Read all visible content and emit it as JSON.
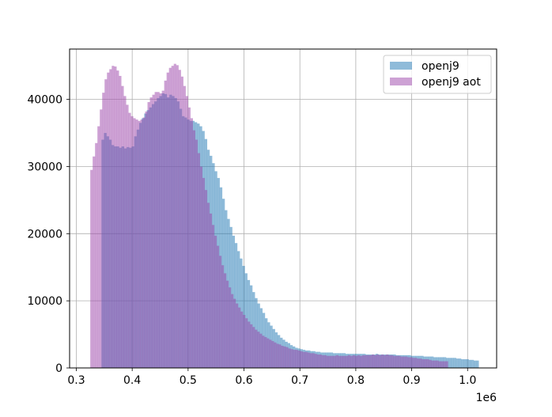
{
  "chart_data": {
    "type": "histogram",
    "x_multiplier_label": "1e6",
    "x_ticks": [
      0.3,
      0.4,
      0.5,
      0.6,
      0.7,
      0.8,
      0.9,
      1.0
    ],
    "x_tick_labels": [
      "0.3",
      "0.4",
      "0.5",
      "0.6",
      "0.7",
      "0.8",
      "0.9",
      "1.0"
    ],
    "y_ticks": [
      0,
      10000,
      20000,
      30000,
      40000
    ],
    "y_tick_labels": [
      "0",
      "10000",
      "20000",
      "30000",
      "40000"
    ],
    "xlim": [
      0.288,
      1.052
    ],
    "ylim": [
      0,
      47500
    ],
    "grid": true,
    "legend": {
      "position": "top-right"
    },
    "series": [
      {
        "name": "openj9",
        "color": "#1f77b4",
        "alpha": 0.5,
        "bins": {
          "start": 0.345,
          "end": 1.02,
          "count": 150,
          "values": [
            34000,
            35000,
            34500,
            34000,
            33200,
            33000,
            33000,
            32800,
            33000,
            32700,
            32900,
            32800,
            33000,
            34500,
            35500,
            36500,
            37200,
            37900,
            38400,
            38800,
            39300,
            39700,
            40200,
            40500,
            40900,
            40800,
            40300,
            40700,
            40500,
            40200,
            39700,
            38600,
            37500,
            37300,
            37000,
            36800,
            36800,
            36600,
            36400,
            36000,
            35300,
            34100,
            32500,
            31600,
            30500,
            29300,
            28300,
            26900,
            25200,
            23500,
            22200,
            21000,
            19700,
            18600,
            17400,
            16300,
            15200,
            14100,
            13100,
            12300,
            11300,
            10400,
            9600,
            8900,
            8200,
            7400,
            6800,
            6300,
            5800,
            5300,
            4900,
            4500,
            4200,
            3900,
            3700,
            3400,
            3200,
            3000,
            2900,
            2800,
            2700,
            2600,
            2600,
            2500,
            2500,
            2400,
            2400,
            2300,
            2300,
            2300,
            2300,
            2300,
            2200,
            2200,
            2200,
            2200,
            2200,
            2100,
            2100,
            2100,
            2100,
            2100,
            2100,
            2100,
            2100,
            2000,
            2000,
            2000,
            2000,
            2100,
            2000,
            2000,
            2000,
            2000,
            2000,
            2000,
            2000,
            1900,
            1900,
            1900,
            1900,
            1900,
            1900,
            1800,
            1800,
            1800,
            1800,
            1800,
            1700,
            1700,
            1700,
            1700,
            1600,
            1600,
            1600,
            1600,
            1600,
            1500,
            1500,
            1500,
            1500,
            1400,
            1400,
            1300,
            1300,
            1300,
            1200,
            1200,
            1100,
            1100
          ]
        }
      },
      {
        "name": "openj9 aot",
        "color": "#9c43aa",
        "alpha": 0.5,
        "bins": {
          "start": 0.325,
          "end": 0.965,
          "count": 150,
          "values": [
            29500,
            31500,
            33500,
            36000,
            38500,
            41000,
            43000,
            44000,
            44500,
            45000,
            44900,
            44300,
            43500,
            42000,
            40500,
            39200,
            38000,
            37500,
            37200,
            37000,
            36800,
            37000,
            37300,
            38200,
            39600,
            40300,
            40700,
            41100,
            41100,
            40900,
            41300,
            42800,
            44000,
            44700,
            45000,
            45300,
            45100,
            44400,
            43400,
            42000,
            40500,
            38800,
            37200,
            35400,
            34000,
            32000,
            30000,
            28300,
            26500,
            24600,
            23000,
            21300,
            19700,
            18200,
            16700,
            15300,
            14100,
            13000,
            12000,
            11000,
            10300,
            9600,
            9000,
            8400,
            7900,
            7400,
            6900,
            6500,
            6100,
            5700,
            5400,
            5100,
            4800,
            4600,
            4400,
            4200,
            4000,
            3800,
            3600,
            3500,
            3300,
            3200,
            3100,
            2900,
            2800,
            2700,
            2700,
            2600,
            2500,
            2400,
            2400,
            2300,
            2200,
            2200,
            2100,
            2000,
            2000,
            1900,
            1900,
            1800,
            1800,
            1800,
            1800,
            1900,
            1800,
            1800,
            1800,
            1800,
            1900,
            1800,
            1900,
            1800,
            1900,
            1800,
            1900,
            1900,
            1900,
            1900,
            2000,
            1900,
            2000,
            1900,
            2000,
            1900,
            2000,
            1900,
            1900,
            1800,
            1800,
            1800,
            1700,
            1700,
            1700,
            1600,
            1600,
            1500,
            1500,
            1400,
            1400,
            1300,
            1300,
            1300,
            1200,
            1100,
            1100,
            1100,
            1000,
            1000,
            1000,
            1000
          ]
        }
      }
    ]
  }
}
